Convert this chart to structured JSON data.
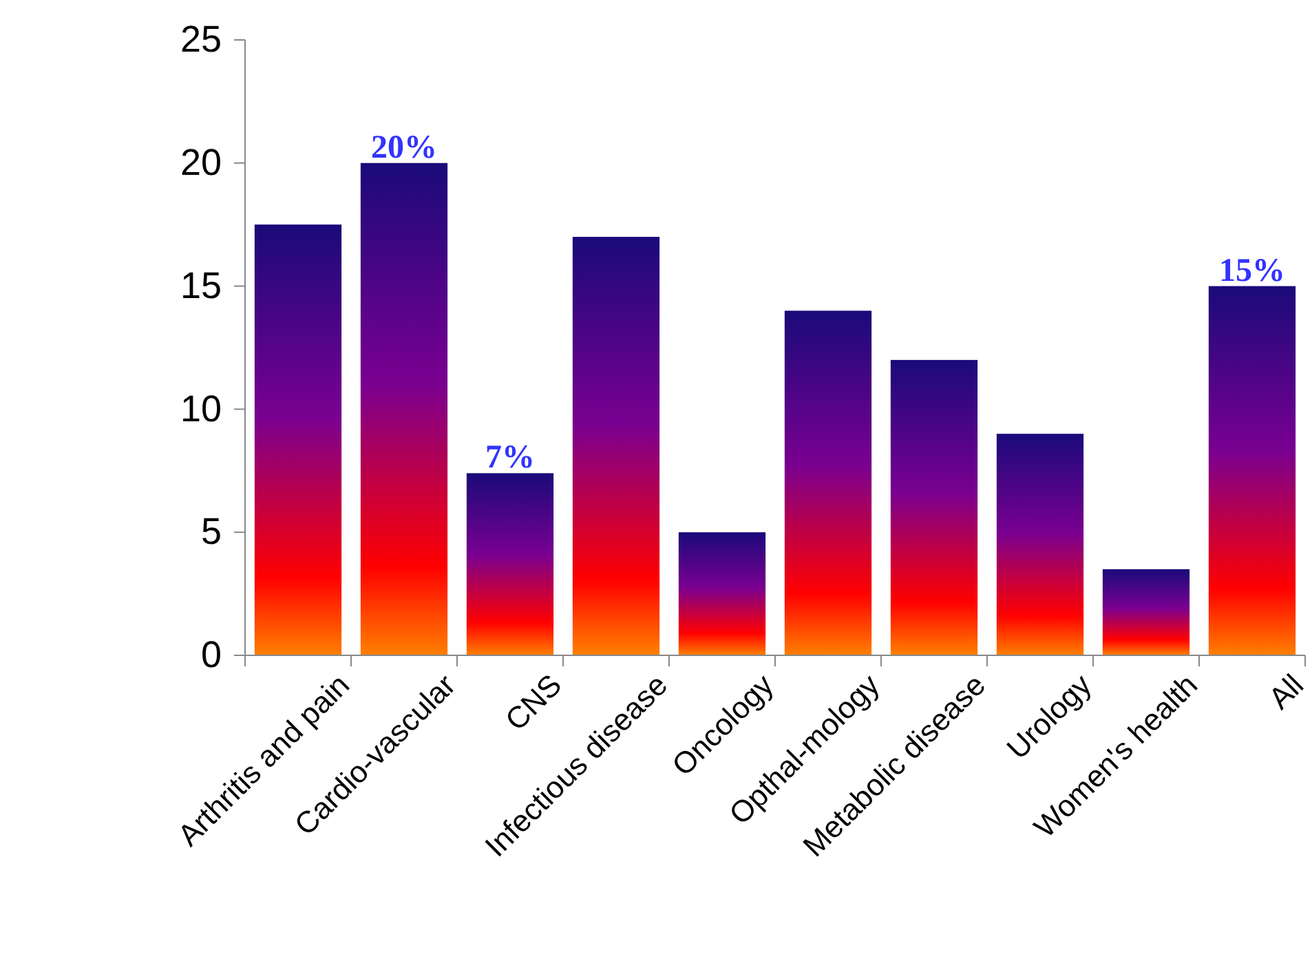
{
  "chart_data": {
    "type": "bar",
    "categories": [
      "Arthritis and pain",
      "Cardio-vascular",
      "CNS",
      "Infectious disease",
      "Oncology",
      "Opthal-mology",
      "Metabolic disease",
      "Urology",
      "Women's health",
      "All"
    ],
    "values": [
      17.5,
      20,
      7.4,
      17,
      5,
      14,
      12,
      9,
      3.5,
      15
    ],
    "value_labels": [
      null,
      "20%",
      "7%",
      null,
      null,
      null,
      null,
      null,
      null,
      "15%"
    ],
    "color": "#1a0a7a",
    "ylim": [
      0,
      25
    ],
    "yticks": [
      0,
      5,
      10,
      15,
      20,
      25
    ],
    "grid": false
  }
}
